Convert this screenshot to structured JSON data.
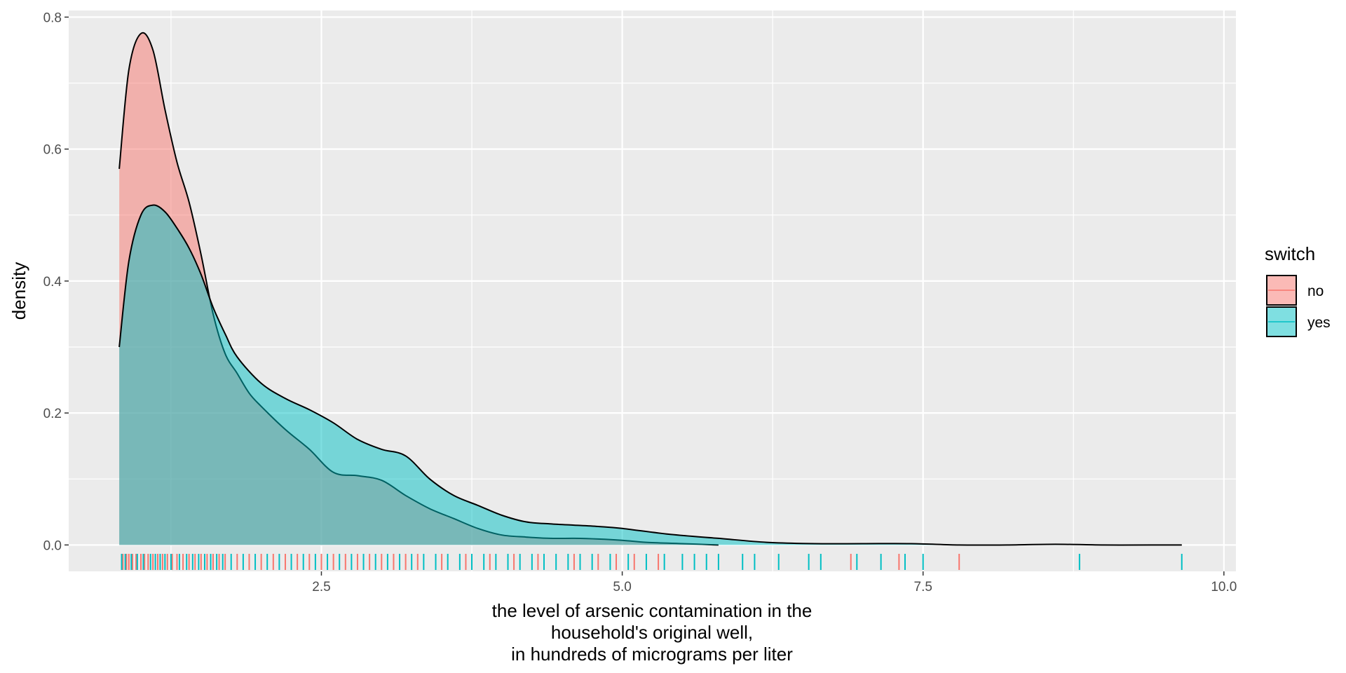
{
  "chart_data": {
    "type": "area",
    "title": "",
    "xlabel_lines": [
      "the level of arsenic contamination in the",
      "household's original well,",
      "in hundreds of micrograms per liter"
    ],
    "ylabel": "density",
    "xlim": [
      0.4,
      10.1
    ],
    "ylim": [
      -0.04,
      0.81
    ],
    "xticks": [
      2.5,
      5.0,
      7.5,
      10.0
    ],
    "xtick_labels": [
      "2.5",
      "5.0",
      "7.5",
      "10.0"
    ],
    "yticks": [
      0.0,
      0.2,
      0.4,
      0.6,
      0.8
    ],
    "ytick_labels": [
      "0.0",
      "0.2",
      "0.4",
      "0.6",
      "0.8"
    ],
    "grid": true,
    "legend": {
      "title": "switch",
      "position": "right",
      "entries": [
        {
          "label": "no",
          "color": "#F8766D"
        },
        {
          "label": "yes",
          "color": "#00BFC4"
        }
      ]
    },
    "series": [
      {
        "name": "no",
        "color": "#F8766D",
        "x": [
          0.82,
          0.9,
          1.0,
          1.1,
          1.2,
          1.3,
          1.4,
          1.5,
          1.6,
          1.7,
          1.8,
          1.9,
          2.0,
          2.2,
          2.4,
          2.6,
          2.8,
          3.0,
          3.2,
          3.4,
          3.6,
          3.8,
          4.0,
          4.2,
          4.4,
          4.6,
          4.8,
          5.0,
          5.2,
          5.5,
          5.8
        ],
        "y": [
          0.57,
          0.72,
          0.775,
          0.75,
          0.66,
          0.58,
          0.52,
          0.44,
          0.35,
          0.29,
          0.26,
          0.23,
          0.21,
          0.175,
          0.145,
          0.11,
          0.105,
          0.098,
          0.075,
          0.055,
          0.04,
          0.025,
          0.015,
          0.012,
          0.01,
          0.01,
          0.009,
          0.007,
          0.004,
          0.002,
          0.0
        ]
      },
      {
        "name": "yes",
        "color": "#00BFC4",
        "x": [
          0.82,
          0.9,
          1.0,
          1.1,
          1.2,
          1.3,
          1.4,
          1.5,
          1.6,
          1.7,
          1.8,
          2.0,
          2.2,
          2.4,
          2.6,
          2.8,
          3.0,
          3.2,
          3.4,
          3.6,
          3.8,
          4.0,
          4.2,
          4.4,
          4.6,
          4.8,
          5.0,
          5.4,
          5.8,
          6.2,
          6.6,
          7.0,
          7.4,
          7.8,
          8.2,
          8.6,
          9.0,
          9.4,
          9.65
        ],
        "y": [
          0.3,
          0.43,
          0.5,
          0.515,
          0.505,
          0.48,
          0.45,
          0.41,
          0.36,
          0.32,
          0.285,
          0.245,
          0.222,
          0.205,
          0.185,
          0.16,
          0.145,
          0.135,
          0.1,
          0.075,
          0.06,
          0.045,
          0.035,
          0.032,
          0.03,
          0.028,
          0.025,
          0.016,
          0.01,
          0.004,
          0.002,
          0.002,
          0.002,
          0.0,
          0.0,
          0.001,
          0.0,
          0.0,
          0.0
        ]
      }
    ],
    "rug": {
      "no": [
        0.85,
        0.88,
        0.9,
        0.93,
        0.96,
        1.0,
        1.03,
        1.06,
        1.1,
        1.14,
        1.18,
        1.22,
        1.26,
        1.3,
        1.35,
        1.4,
        1.45,
        1.5,
        1.55,
        1.6,
        1.65,
        1.7,
        1.8,
        1.9,
        2.0,
        2.1,
        2.2,
        2.3,
        2.4,
        2.5,
        2.6,
        2.7,
        2.8,
        2.9,
        3.0,
        3.1,
        3.2,
        3.3,
        3.5,
        3.7,
        3.9,
        4.1,
        4.3,
        4.6,
        4.8,
        4.95,
        5.1,
        5.3,
        6.9,
        7.3,
        7.8
      ],
      "yes": [
        0.84,
        0.87,
        0.92,
        0.97,
        1.02,
        1.08,
        1.12,
        1.16,
        1.2,
        1.25,
        1.32,
        1.38,
        1.43,
        1.48,
        1.53,
        1.58,
        1.63,
        1.68,
        1.75,
        1.85,
        1.95,
        2.05,
        2.15,
        2.25,
        2.35,
        2.45,
        2.55,
        2.65,
        2.75,
        2.85,
        2.95,
        3.05,
        3.15,
        3.25,
        3.35,
        3.45,
        3.55,
        3.65,
        3.75,
        3.85,
        3.95,
        4.05,
        4.15,
        4.25,
        4.35,
        4.45,
        4.55,
        4.65,
        4.75,
        4.9,
        5.05,
        5.2,
        5.35,
        5.5,
        5.6,
        5.7,
        5.8,
        6.0,
        6.1,
        6.3,
        6.55,
        6.65,
        6.95,
        7.15,
        7.35,
        7.5,
        8.8,
        9.65
      ]
    }
  }
}
